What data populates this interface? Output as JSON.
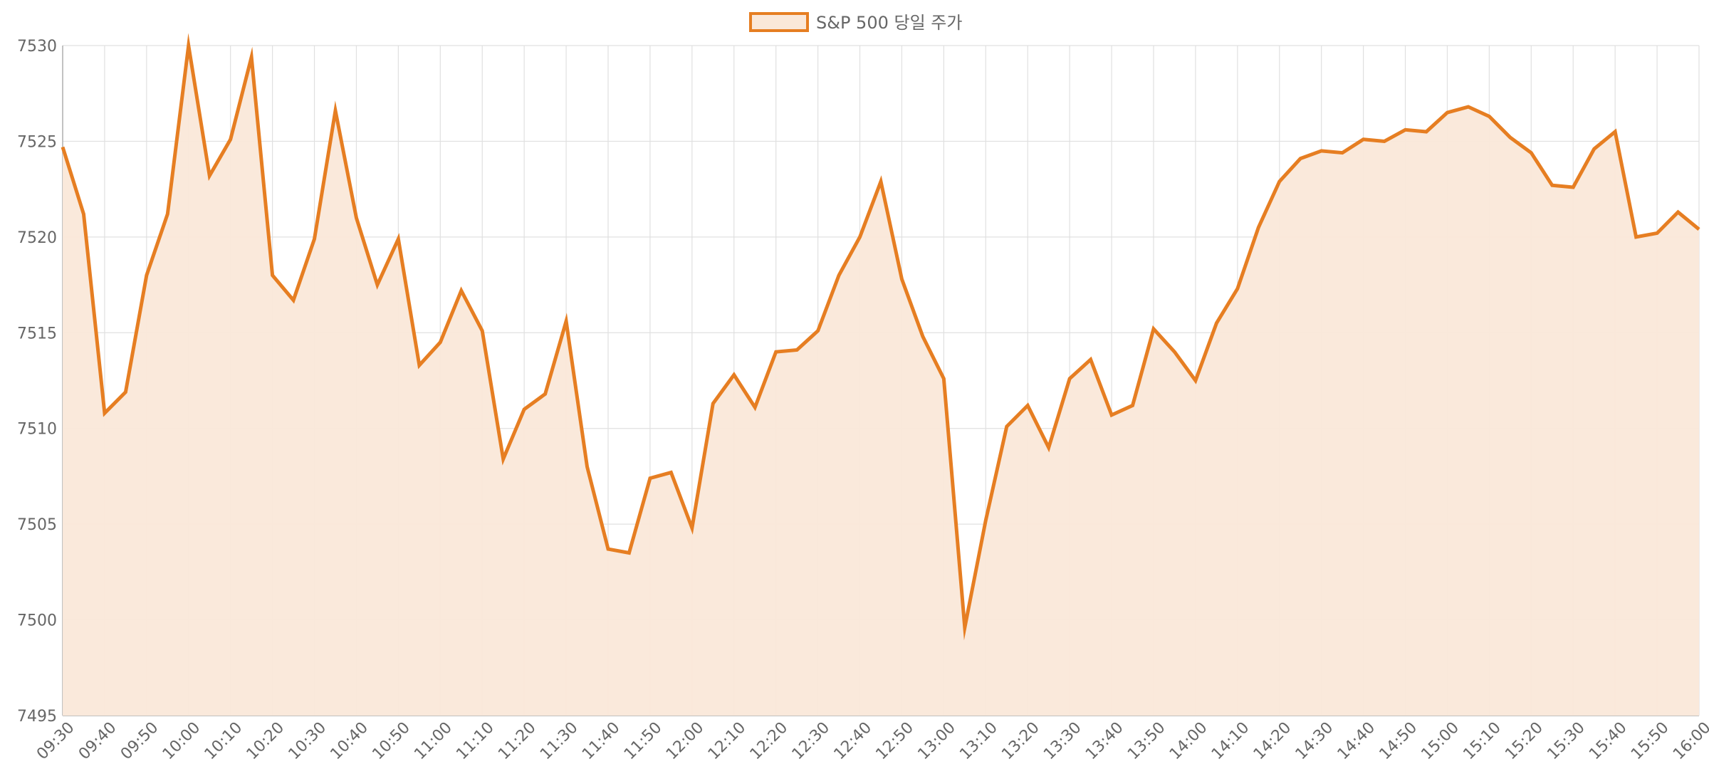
{
  "chart_data": {
    "type": "area",
    "legend": {
      "label": "S&P 500 당일 주가",
      "position": "top-center"
    },
    "series": [
      {
        "name": "S&P 500 당일 주가",
        "color": "#e67e22",
        "fill": "#fae8d9",
        "values": [
          7524.7,
          7521.2,
          7510.8,
          7511.9,
          7518.0,
          7521.2,
          7530.0,
          7523.2,
          7525.1,
          7529.4,
          7518.0,
          7516.7,
          7519.9,
          7526.6,
          7521.0,
          7517.5,
          7519.9,
          7513.3,
          7514.5,
          7517.2,
          7515.1,
          7508.4,
          7511.0,
          7511.8,
          7515.6,
          7508.0,
          7503.7,
          7503.5,
          7507.4,
          7507.7,
          7504.8,
          7511.3,
          7512.8,
          7511.1,
          7514.0,
          7514.1,
          7515.1,
          7518.0,
          7520.0,
          7522.9,
          7517.8,
          7514.8,
          7512.6,
          7499.6,
          7505.2,
          7510.1,
          7511.2,
          7509.0,
          7512.6,
          7513.6,
          7510.7,
          7511.2,
          7515.2,
          7514.0,
          7512.5,
          7515.5,
          7517.3,
          7520.5,
          7522.9,
          7524.1,
          7524.5,
          7524.4,
          7525.1,
          7525.0,
          7525.6,
          7525.5,
          7526.5,
          7526.8,
          7526.3,
          7525.2,
          7524.4,
          7522.7,
          7522.6,
          7524.6,
          7525.5,
          7520.0,
          7520.2,
          7521.3,
          7520.4
        ]
      }
    ],
    "x": [
      "09:30",
      "09:35",
      "09:40",
      "09:45",
      "09:50",
      "09:55",
      "10:00",
      "10:05",
      "10:10",
      "10:15",
      "10:20",
      "10:25",
      "10:30",
      "10:35",
      "10:40",
      "10:45",
      "10:50",
      "10:55",
      "11:00",
      "11:05",
      "11:10",
      "11:15",
      "11:20",
      "11:25",
      "11:30",
      "11:35",
      "11:40",
      "11:45",
      "11:50",
      "11:55",
      "12:00",
      "12:05",
      "12:10",
      "12:15",
      "12:20",
      "12:25",
      "12:30",
      "12:35",
      "12:40",
      "12:45",
      "12:50",
      "12:55",
      "13:00",
      "13:05",
      "13:10",
      "13:15",
      "13:20",
      "13:25",
      "13:30",
      "13:35",
      "13:40",
      "13:45",
      "13:50",
      "13:55",
      "14:00",
      "14:05",
      "14:10",
      "14:15",
      "14:20",
      "14:25",
      "14:30",
      "14:35",
      "14:40",
      "14:45",
      "14:50",
      "14:55",
      "15:00",
      "15:05",
      "15:10",
      "15:15",
      "15:20",
      "15:25",
      "15:30",
      "15:35",
      "15:40",
      "15:45",
      "15:50",
      "15:55",
      "16:00"
    ],
    "x_tick_labels": [
      "09:30",
      "09:40",
      "09:50",
      "10:00",
      "10:10",
      "10:20",
      "10:30",
      "10:40",
      "10:50",
      "11:00",
      "11:10",
      "11:20",
      "11:30",
      "11:40",
      "11:50",
      "12:00",
      "12:10",
      "12:20",
      "12:30",
      "12:40",
      "12:50",
      "13:00",
      "13:10",
      "13:20",
      "13:30",
      "13:40",
      "13:50",
      "14:00",
      "14:10",
      "14:20",
      "14:30",
      "14:40",
      "14:50",
      "15:00",
      "15:10",
      "15:20",
      "15:30",
      "15:40",
      "15:50",
      "16:00"
    ],
    "y_ticks": [
      7495,
      7500,
      7505,
      7510,
      7515,
      7520,
      7525,
      7530
    ],
    "ylim": [
      7495,
      7530
    ],
    "grid": true,
    "xlabel": "",
    "ylabel": "",
    "title": ""
  }
}
